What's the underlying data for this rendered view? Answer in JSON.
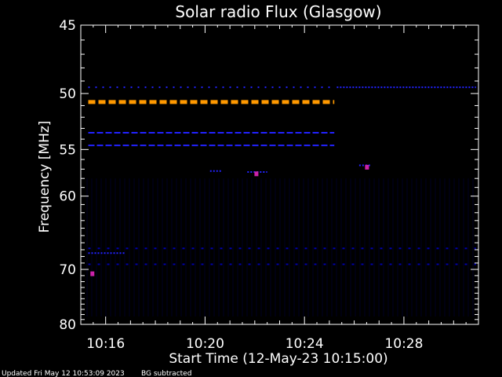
{
  "chart_data": {
    "type": "heatmap",
    "title": "Solar radio Flux (Glasgow)",
    "xlabel": "Start Time (12-May-23 10:15:00)",
    "ylabel": "Frequency [MHz]",
    "x_unit": "minutes",
    "xlim": [
      10.15,
      10.31
    ],
    "ylim": [
      80,
      45
    ],
    "y_scale": "reciprocal",
    "x_ticks": [
      {
        "label": "10:16",
        "value": 16
      },
      {
        "label": "10:20",
        "value": 20
      },
      {
        "label": "10:24",
        "value": 24
      },
      {
        "label": "10:28",
        "value": 28
      }
    ],
    "y_ticks": [
      45,
      50,
      55,
      60,
      70,
      80
    ],
    "grid": false,
    "background_color": "#000000",
    "colors": {
      "low": "#0000aa",
      "mid": "#2222ff",
      "high": "#ff9900",
      "spot": "#cc22aa"
    },
    "bands": [
      {
        "freq": 49.5,
        "t_start": 15.3,
        "t_end": 25.2,
        "intensity": "mid",
        "style": "dotted"
      },
      {
        "freq": 49.5,
        "t_start": 25.3,
        "t_end": 30.9,
        "intensity": "mid",
        "style": "dense"
      },
      {
        "freq": 50.7,
        "t_start": 15.3,
        "t_end": 25.2,
        "intensity": "high",
        "style": "dashed"
      },
      {
        "freq": 53.4,
        "t_start": 15.3,
        "t_end": 25.2,
        "intensity": "mid",
        "style": "dashed"
      },
      {
        "freq": 54.6,
        "t_start": 15.3,
        "t_end": 25.2,
        "intensity": "mid",
        "style": "dashed"
      },
      {
        "freq": 57.2,
        "t_start": 20.2,
        "t_end": 20.7,
        "intensity": "mid",
        "style": "dense"
      },
      {
        "freq": 57.3,
        "t_start": 21.7,
        "t_end": 22.5,
        "intensity": "mid",
        "style": "dense"
      },
      {
        "freq": 56.6,
        "t_start": 26.2,
        "t_end": 26.7,
        "intensity": "mid",
        "style": "dense"
      },
      {
        "freq": 66.8,
        "t_start": 15.3,
        "t_end": 30.9,
        "intensity": "low",
        "style": "sparse"
      },
      {
        "freq": 67.5,
        "t_start": 15.3,
        "t_end": 16.8,
        "intensity": "mid",
        "style": "dense"
      },
      {
        "freq": 69.2,
        "t_start": 15.3,
        "t_end": 30.9,
        "intensity": "low",
        "style": "sparse"
      }
    ],
    "spots": [
      {
        "t": 15.45,
        "freq": 70.7,
        "intensity": "spot"
      },
      {
        "t": 22.05,
        "freq": 57.5,
        "intensity": "spot"
      },
      {
        "t": 26.5,
        "freq": 56.8,
        "intensity": "spot"
      }
    ]
  },
  "footer": {
    "updated": "Updated Fri May 12 10:53:09 2023",
    "note": "BG subtracted"
  }
}
